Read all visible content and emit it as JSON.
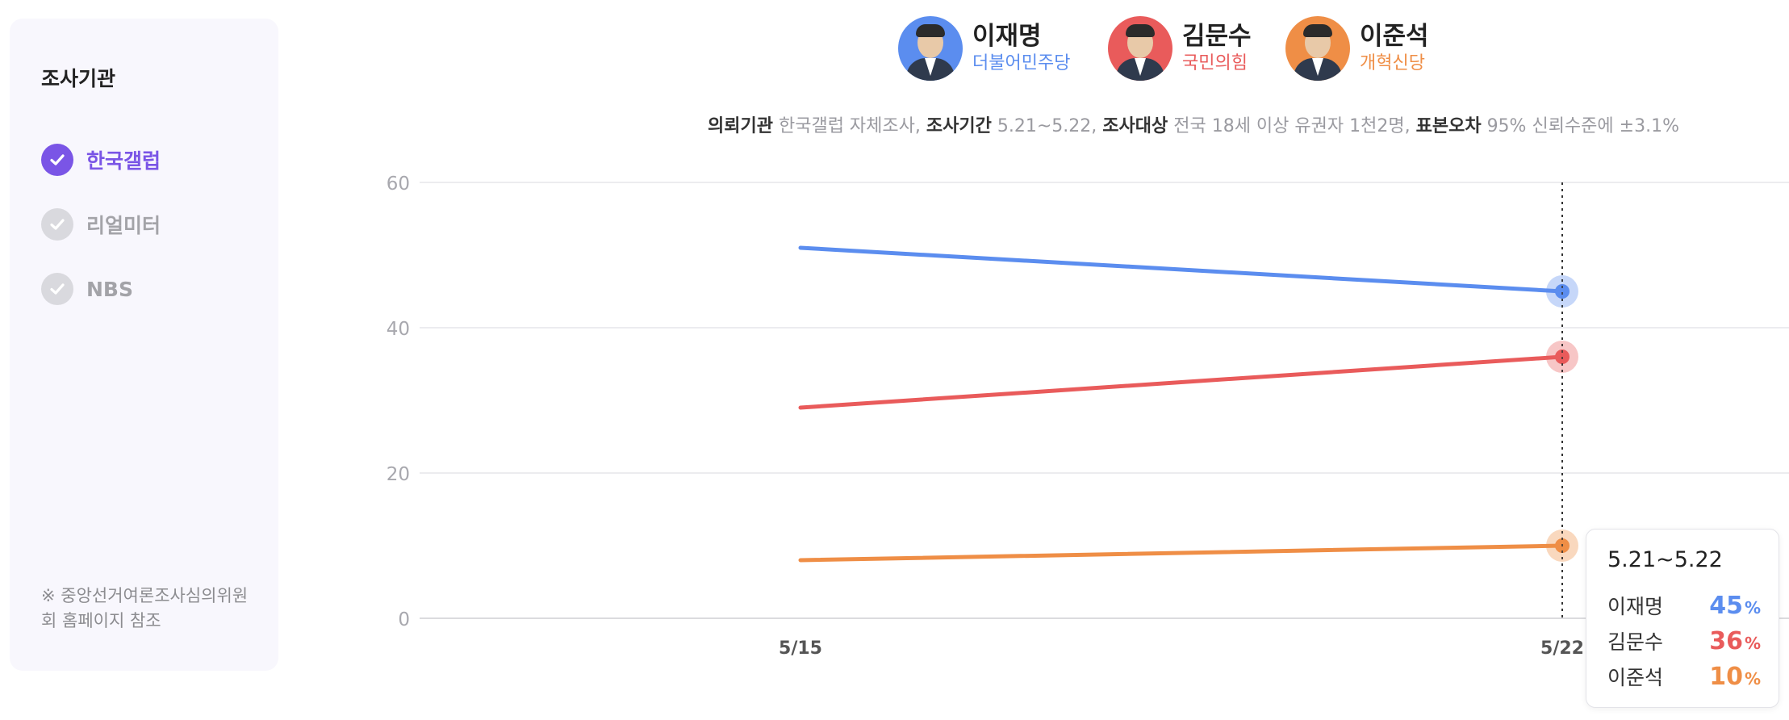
{
  "sidebar": {
    "title": "조사기관",
    "items": [
      {
        "label": "한국갤럽",
        "active": true
      },
      {
        "label": "리얼미터",
        "active": false
      },
      {
        "label": "NBS",
        "active": false
      }
    ],
    "note": "※ 중앙선거여론조사심의위원회 홈페이지 참조"
  },
  "candidates": [
    {
      "name": "이재명",
      "party": "더불어민주당",
      "color": "#5b8def"
    },
    {
      "name": "김문수",
      "party": "국민의힘",
      "color": "#e95b5b"
    },
    {
      "name": "이준석",
      "party": "개혁신당",
      "color": "#ef8e46"
    }
  ],
  "survey_info": {
    "org_label": "의뢰기관",
    "org_value": "한국갤럽 자체조사,",
    "period_label": "조사기간",
    "period_value": "5.21~5.22,",
    "target_label": "조사대상",
    "target_value": "전국 18세 이상 유권자 1천2명,",
    "error_label": "표본오차",
    "error_value": "95% 신뢰수준에 ±3.1%"
  },
  "chart_data": {
    "type": "line",
    "x": [
      "5/15",
      "5/22"
    ],
    "ylim": [
      0,
      60
    ],
    "yticks": [
      0,
      20,
      40,
      60
    ],
    "grid": true,
    "series": [
      {
        "name": "이재명",
        "values": [
          51,
          45
        ],
        "color": "#5b8def"
      },
      {
        "name": "김문수",
        "values": [
          29,
          36
        ],
        "color": "#e95b5b"
      },
      {
        "name": "이준석",
        "values": [
          8,
          10
        ],
        "color": "#ef8e46"
      }
    ],
    "highlight_index": 1
  },
  "tooltip": {
    "title": "5.21~5.22",
    "unit": "%",
    "rows": [
      {
        "name": "이재명",
        "value": "45",
        "color": "#5b8def"
      },
      {
        "name": "김문수",
        "value": "36",
        "color": "#e95b5b"
      },
      {
        "name": "이준석",
        "value": "10",
        "color": "#ef8e46"
      }
    ]
  }
}
